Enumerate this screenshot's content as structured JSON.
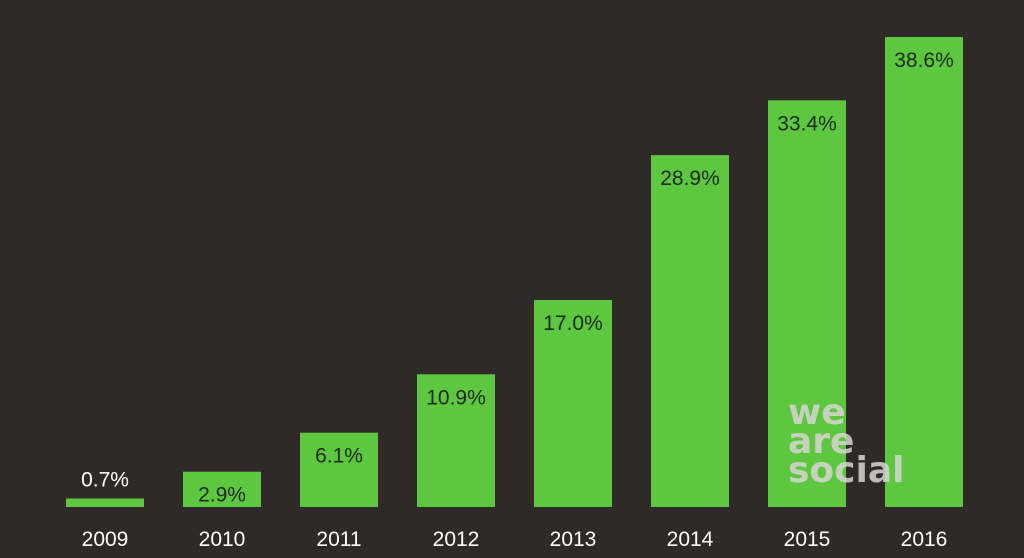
{
  "chart_data": {
    "type": "bar",
    "categories": [
      "2009",
      "2010",
      "2011",
      "2012",
      "2013",
      "2014",
      "2015",
      "2016"
    ],
    "values": [
      0.7,
      2.9,
      6.1,
      10.9,
      17.0,
      28.9,
      33.4,
      38.6
    ],
    "data_labels": [
      "0.7%",
      "2.9%",
      "6.1%",
      "10.9%",
      "17.0%",
      "28.9%",
      "33.4%",
      "38.6%"
    ],
    "title": "",
    "xlabel": "",
    "ylabel": "",
    "ylim": [
      0,
      40
    ],
    "grid": false,
    "legend": "none"
  },
  "colors": {
    "background": "#2f2a28",
    "bar": "#5cc73f",
    "label_inside": "#1f2a1a",
    "label_outside": "#ffffff",
    "axis_text": "#ffffff",
    "watermark": "#d9d6d2"
  },
  "watermark": {
    "lines": [
      "we",
      "are",
      "social"
    ]
  }
}
